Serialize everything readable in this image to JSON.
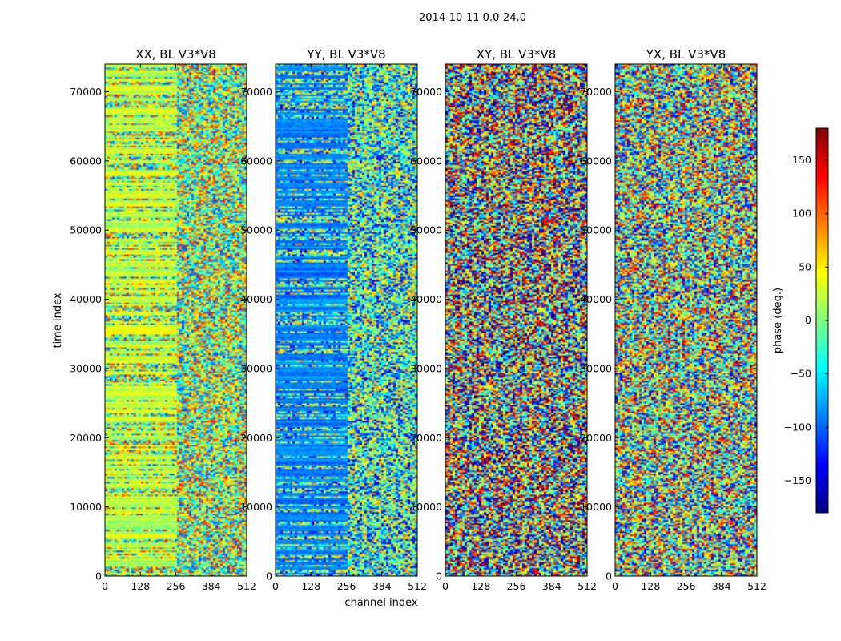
{
  "chart_data": {
    "type": "heatmap",
    "suptitle": "2014-10-11 0.0-24.0",
    "xlabel": "channel index",
    "ylabel": "time index",
    "xlim": [
      0,
      512
    ],
    "ylim": [
      0,
      74000
    ],
    "xticks": [
      "0",
      "128",
      "256",
      "384",
      "512"
    ],
    "yticks": [
      "0",
      "10000",
      "20000",
      "30000",
      "40000",
      "50000",
      "60000",
      "70000"
    ],
    "colormap": "jet",
    "colorbar": {
      "label": "phase (deg.)",
      "range": [
        -180,
        180
      ],
      "ticks": [
        "150",
        "100",
        "50",
        "0",
        "−50",
        "−100",
        "−150"
      ]
    },
    "panels": [
      {
        "title": "XX, BL V3*V8",
        "mean_phase_deg": 25,
        "spread_deg": 55,
        "coherent_channel_max": 256
      },
      {
        "title": "YY, BL V3*V8",
        "mean_phase_deg": -90,
        "spread_deg": 40,
        "coherent_channel_max": 256
      },
      {
        "title": "XY, BL V3*V8",
        "mean_phase_deg": 0,
        "spread_deg": 180,
        "coherent_channel_max": 0
      },
      {
        "title": "YX, BL V3*V8",
        "mean_phase_deg": 0,
        "spread_deg": 150,
        "coherent_channel_max": 0
      }
    ]
  }
}
